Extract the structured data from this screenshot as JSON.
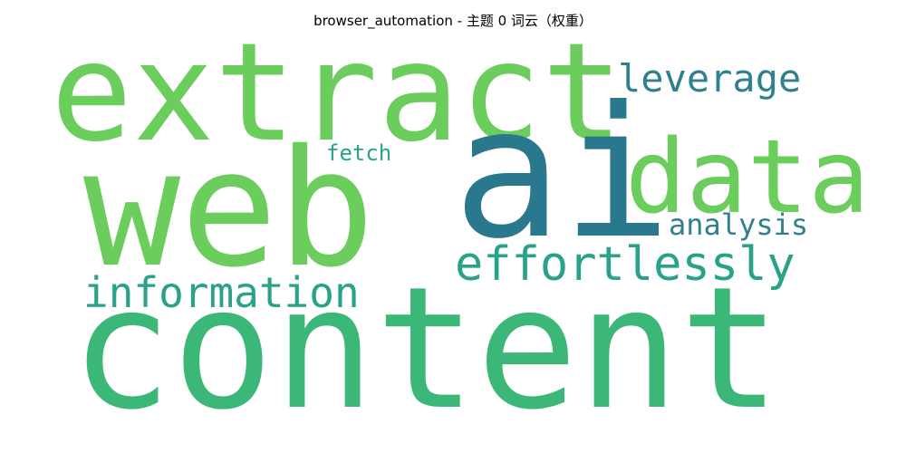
{
  "title": "browser_automation - 主题 0 词云（权重）",
  "colors": {
    "background": "#ffffff",
    "light_green": "#6acd5c",
    "mid_green": "#3bb878",
    "teal": "#2aa28a",
    "blue_teal": "#2e818d",
    "dark_teal": "#2a788e"
  },
  "words": [
    {
      "text": "content",
      "color": "#3bb878"
    },
    {
      "text": "web",
      "color": "#6acd5c"
    },
    {
      "text": "extract",
      "color": "#6acd5c"
    },
    {
      "text": "ai",
      "color": "#2a788e"
    },
    {
      "text": "data",
      "color": "#6acd5c"
    },
    {
      "text": "effortlessly",
      "color": "#2aa28a"
    },
    {
      "text": "information",
      "color": "#2aa28a"
    },
    {
      "text": "leverage",
      "color": "#2e818d"
    },
    {
      "text": "analysis",
      "color": "#2e818d"
    },
    {
      "text": "fetch",
      "color": "#2aa28a"
    }
  ]
}
